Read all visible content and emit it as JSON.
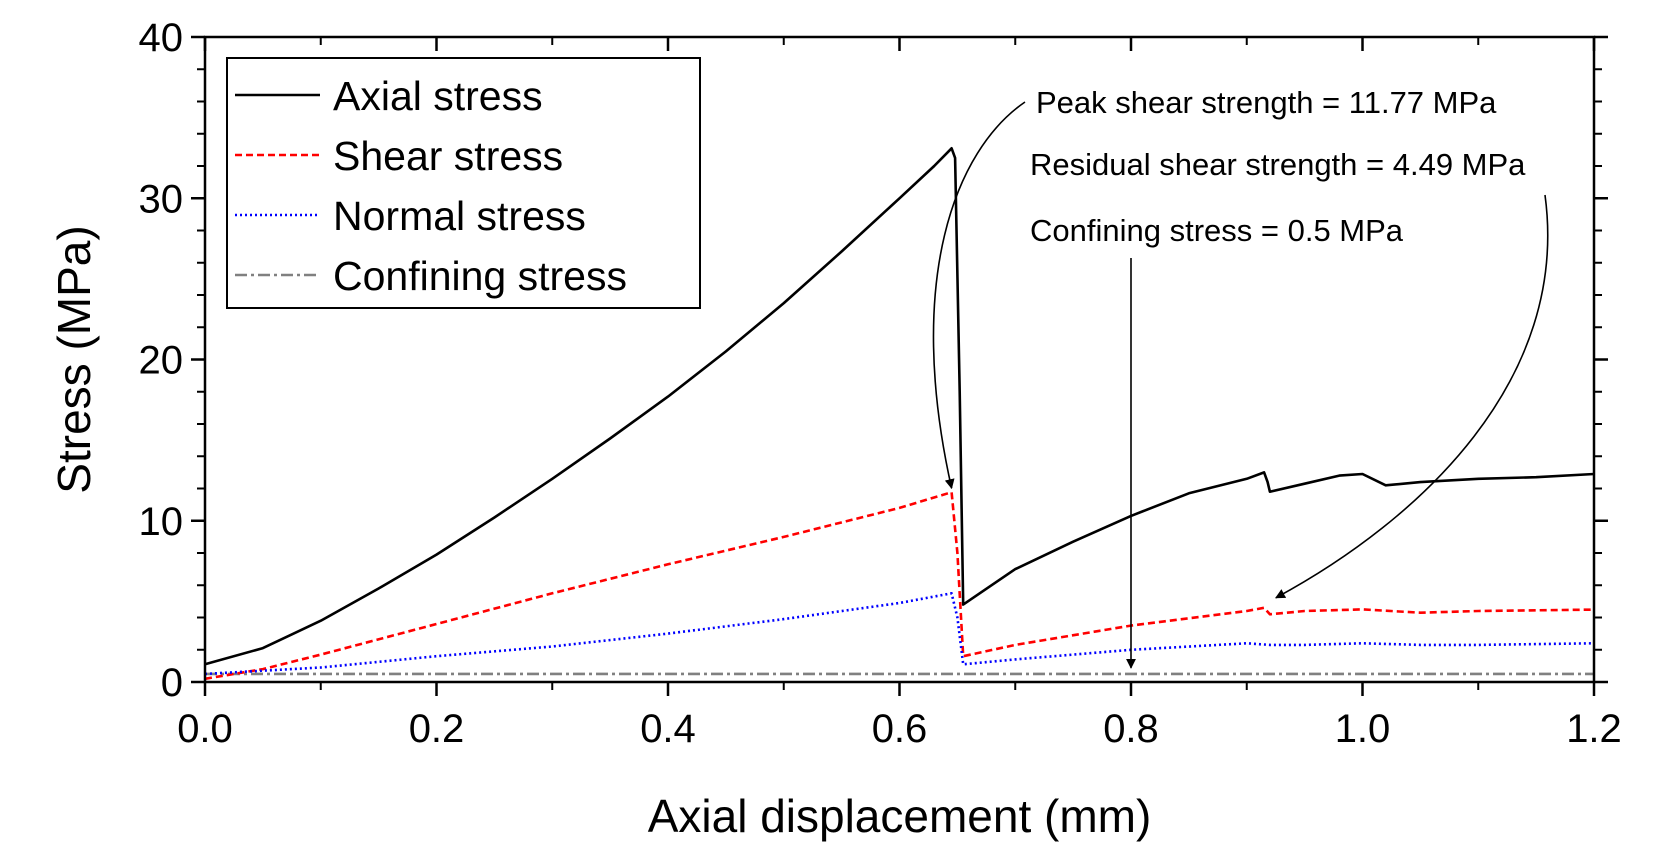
{
  "chart_data": {
    "type": "line",
    "xlabel": "Axial displacement (mm)",
    "ylabel": "Stress (MPa)",
    "xlim": [
      0.0,
      1.2
    ],
    "ylim": [
      0,
      40
    ],
    "xticks": [
      "0.0",
      "0.2",
      "0.4",
      "0.6",
      "0.8",
      "1.0",
      "1.2"
    ],
    "yticks": [
      "0",
      "10",
      "20",
      "30",
      "40"
    ],
    "grid": false,
    "legend_position": "top-left",
    "series": [
      {
        "name": "Axial stress",
        "color": "#000000",
        "dash": "solid",
        "x": [
          0.0,
          0.05,
          0.1,
          0.15,
          0.2,
          0.25,
          0.3,
          0.35,
          0.4,
          0.45,
          0.5,
          0.55,
          0.6,
          0.63,
          0.645,
          0.648,
          0.652,
          0.655,
          0.7,
          0.75,
          0.8,
          0.85,
          0.9,
          0.915,
          0.918,
          0.92,
          0.95,
          0.98,
          1.0,
          1.02,
          1.05,
          1.1,
          1.15,
          1.2
        ],
        "y": [
          1.1,
          2.1,
          3.8,
          5.8,
          7.9,
          10.2,
          12.6,
          15.1,
          17.7,
          20.5,
          23.5,
          26.7,
          30.0,
          32.0,
          33.1,
          32.5,
          18.0,
          4.8,
          7.0,
          8.7,
          10.3,
          11.7,
          12.6,
          13.0,
          12.4,
          11.8,
          12.3,
          12.8,
          12.9,
          12.2,
          12.4,
          12.6,
          12.7,
          12.9
        ]
      },
      {
        "name": "Shear stress",
        "color": "#ff0000",
        "dash": "dash",
        "x": [
          0.0,
          0.05,
          0.1,
          0.2,
          0.3,
          0.4,
          0.5,
          0.6,
          0.645,
          0.65,
          0.655,
          0.7,
          0.8,
          0.9,
          0.915,
          0.92,
          0.95,
          1.0,
          1.05,
          1.1,
          1.2
        ],
        "y": [
          0.2,
          0.8,
          1.7,
          3.6,
          5.5,
          7.3,
          9.0,
          10.8,
          11.77,
          8.0,
          1.6,
          2.3,
          3.5,
          4.4,
          4.6,
          4.2,
          4.4,
          4.5,
          4.3,
          4.4,
          4.49
        ]
      },
      {
        "name": "Normal stress",
        "color": "#0000ff",
        "dash": "dot",
        "x": [
          0.0,
          0.1,
          0.2,
          0.3,
          0.4,
          0.5,
          0.6,
          0.645,
          0.65,
          0.655,
          0.7,
          0.8,
          0.9,
          0.92,
          0.95,
          1.0,
          1.05,
          1.1,
          1.2
        ],
        "y": [
          0.5,
          0.9,
          1.6,
          2.2,
          3.0,
          3.9,
          4.9,
          5.5,
          4.0,
          1.1,
          1.4,
          2.0,
          2.4,
          2.3,
          2.3,
          2.4,
          2.3,
          2.3,
          2.4
        ]
      },
      {
        "name": "Confining stress",
        "color": "#808080",
        "dash": "dashdot",
        "x": [
          0.0,
          0.3,
          0.6,
          0.9,
          1.2
        ],
        "y": [
          0.5,
          0.5,
          0.5,
          0.5,
          0.5
        ]
      }
    ],
    "annotations": [
      {
        "text": "Peak shear strength = 11.77 MPa",
        "arrow_to": [
          0.645,
          11.77
        ]
      },
      {
        "text": "Residual shear strength = 4.49 MPa",
        "arrow_to": [
          0.92,
          4.6
        ]
      },
      {
        "text": "Confining stress = 0.5 MPa",
        "arrow_to": [
          0.8,
          0.5
        ]
      }
    ]
  }
}
